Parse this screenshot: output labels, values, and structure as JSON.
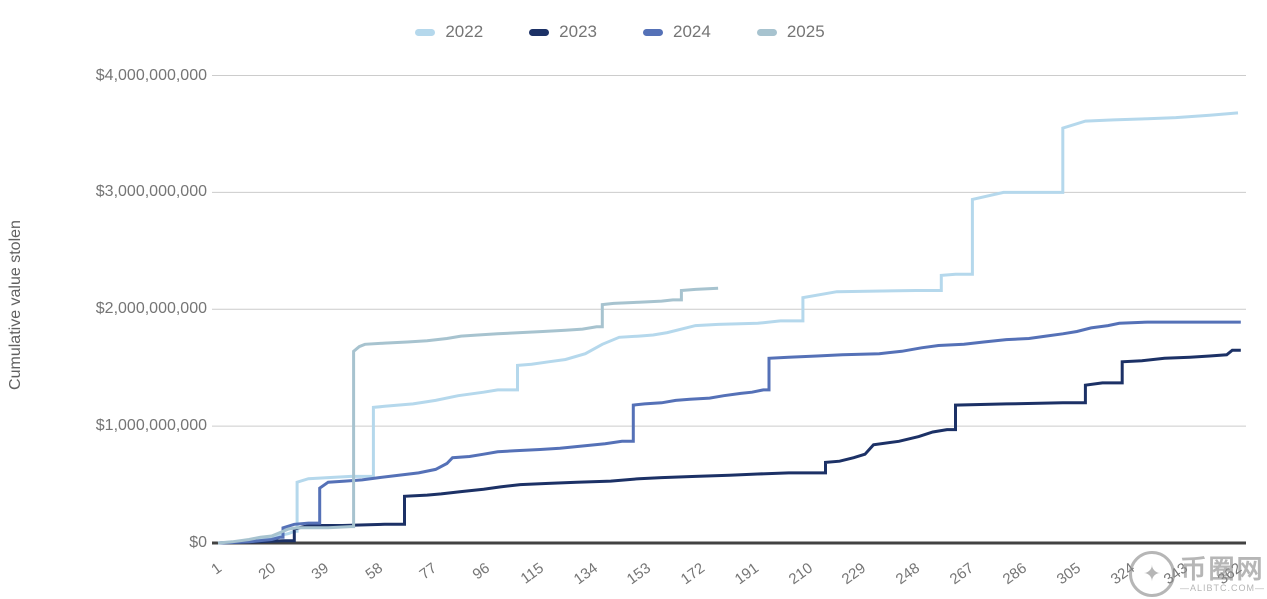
{
  "watermark": {
    "site_name": "币圈网",
    "domain": "—ALIBTC.COM—",
    "logo_icon": "panda-mascot-icon"
  },
  "chart_data": {
    "type": "line",
    "subtype": "cumulative-step",
    "title": "",
    "xlabel": "",
    "ylabel": "Cumulative value stolen",
    "values_unit": "USD billions",
    "ylim_billions": [
      0,
      4
    ],
    "xlim_days": [
      1,
      368
    ],
    "grid": "horizontal-only",
    "legend_position": "top-center",
    "axis_colors": {
      "gridline": "#cccccc",
      "baseline": "#424242",
      "tick_text": "#757575",
      "axis_title_text": "#616161"
    },
    "y_ticks": [
      {
        "value": 0,
        "label": "$0"
      },
      {
        "value": 1,
        "label": "$1,000,000,000"
      },
      {
        "value": 2,
        "label": "$2,000,000,000"
      },
      {
        "value": 3,
        "label": "$3,000,000,000"
      },
      {
        "value": 4,
        "label": "$4,000,000,000"
      }
    ],
    "x_ticks": [
      1,
      20,
      39,
      58,
      77,
      96,
      115,
      134,
      153,
      172,
      191,
      210,
      229,
      248,
      267,
      286,
      305,
      324,
      343,
      362
    ],
    "series": [
      {
        "name": "2022",
        "color": "#b5d8ec",
        "points_day_billions": [
          [
            1,
            0
          ],
          [
            8,
            0.01
          ],
          [
            15,
            0.03
          ],
          [
            20,
            0.05
          ],
          [
            26,
            0.08
          ],
          [
            28,
            0.1
          ],
          [
            29,
            0.52
          ],
          [
            33,
            0.55
          ],
          [
            40,
            0.56
          ],
          [
            48,
            0.57
          ],
          [
            56,
            1.16
          ],
          [
            60,
            1.17
          ],
          [
            70,
            1.19
          ],
          [
            78,
            1.22
          ],
          [
            86,
            1.26
          ],
          [
            95,
            1.29
          ],
          [
            100,
            1.31
          ],
          [
            107,
            1.52
          ],
          [
            112,
            1.53
          ],
          [
            118,
            1.55
          ],
          [
            124,
            1.57
          ],
          [
            131,
            1.62
          ],
          [
            137,
            1.7
          ],
          [
            143,
            1.76
          ],
          [
            150,
            1.77
          ],
          [
            155,
            1.78
          ],
          [
            160,
            1.8
          ],
          [
            170,
            1.86
          ],
          [
            178,
            1.87
          ],
          [
            192,
            1.88
          ],
          [
            200,
            1.9
          ],
          [
            208,
            2.1
          ],
          [
            220,
            2.15
          ],
          [
            248,
            2.16
          ],
          [
            257,
            2.29
          ],
          [
            262,
            2.3
          ],
          [
            268,
            2.94
          ],
          [
            279,
            3.0
          ],
          [
            299,
            3.0
          ],
          [
            300,
            3.55
          ],
          [
            308,
            3.61
          ],
          [
            318,
            3.62
          ],
          [
            330,
            3.63
          ],
          [
            340,
            3.64
          ],
          [
            352,
            3.66
          ],
          [
            362,
            3.68
          ]
        ]
      },
      {
        "name": "2023",
        "color": "#1c3166",
        "points_day_billions": [
          [
            1,
            0
          ],
          [
            15,
            0.01
          ],
          [
            24,
            0.02
          ],
          [
            28,
            0.12
          ],
          [
            33,
            0.15
          ],
          [
            45,
            0.15
          ],
          [
            60,
            0.16
          ],
          [
            66,
            0.16
          ],
          [
            67,
            0.4
          ],
          [
            75,
            0.41
          ],
          [
            80,
            0.42
          ],
          [
            87,
            0.44
          ],
          [
            95,
            0.46
          ],
          [
            101,
            0.48
          ],
          [
            108,
            0.5
          ],
          [
            118,
            0.51
          ],
          [
            128,
            0.52
          ],
          [
            140,
            0.53
          ],
          [
            150,
            0.55
          ],
          [
            158,
            0.56
          ],
          [
            170,
            0.57
          ],
          [
            182,
            0.58
          ],
          [
            192,
            0.59
          ],
          [
            203,
            0.6
          ],
          [
            216,
            0.69
          ],
          [
            221,
            0.7
          ],
          [
            226,
            0.73
          ],
          [
            230,
            0.76
          ],
          [
            233,
            0.84
          ],
          [
            242,
            0.87
          ],
          [
            249,
            0.91
          ],
          [
            254,
            0.95
          ],
          [
            259,
            0.97
          ],
          [
            262,
            1.18
          ],
          [
            280,
            1.19
          ],
          [
            300,
            1.2
          ],
          [
            308,
            1.35
          ],
          [
            314,
            1.37
          ],
          [
            321,
            1.55
          ],
          [
            328,
            1.56
          ],
          [
            336,
            1.58
          ],
          [
            345,
            1.59
          ],
          [
            352,
            1.6
          ],
          [
            358,
            1.61
          ],
          [
            360,
            1.65
          ],
          [
            363,
            1.65
          ]
        ]
      },
      {
        "name": "2024",
        "color": "#5571b7",
        "points_day_billions": [
          [
            1,
            0
          ],
          [
            12,
            0.01
          ],
          [
            20,
            0.03
          ],
          [
            23,
            0.05
          ],
          [
            24,
            0.13
          ],
          [
            28,
            0.16
          ],
          [
            33,
            0.17
          ],
          [
            37,
            0.47
          ],
          [
            40,
            0.52
          ],
          [
            46,
            0.53
          ],
          [
            52,
            0.54
          ],
          [
            58,
            0.56
          ],
          [
            65,
            0.58
          ],
          [
            72,
            0.6
          ],
          [
            78,
            0.63
          ],
          [
            82,
            0.68
          ],
          [
            84,
            0.73
          ],
          [
            90,
            0.74
          ],
          [
            95,
            0.76
          ],
          [
            100,
            0.78
          ],
          [
            106,
            0.79
          ],
          [
            115,
            0.8
          ],
          [
            122,
            0.81
          ],
          [
            130,
            0.83
          ],
          [
            138,
            0.85
          ],
          [
            144,
            0.87
          ],
          [
            148,
            1.18
          ],
          [
            152,
            1.19
          ],
          [
            158,
            1.2
          ],
          [
            163,
            1.22
          ],
          [
            168,
            1.23
          ],
          [
            175,
            1.24
          ],
          [
            180,
            1.26
          ],
          [
            186,
            1.28
          ],
          [
            190,
            1.29
          ],
          [
            194,
            1.31
          ],
          [
            196,
            1.58
          ],
          [
            203,
            1.59
          ],
          [
            213,
            1.6
          ],
          [
            222,
            1.61
          ],
          [
            235,
            1.62
          ],
          [
            243,
            1.64
          ],
          [
            250,
            1.67
          ],
          [
            256,
            1.69
          ],
          [
            265,
            1.7
          ],
          [
            272,
            1.72
          ],
          [
            280,
            1.74
          ],
          [
            288,
            1.75
          ],
          [
            294,
            1.77
          ],
          [
            300,
            1.79
          ],
          [
            305,
            1.81
          ],
          [
            310,
            1.84
          ],
          [
            316,
            1.86
          ],
          [
            320,
            1.88
          ],
          [
            330,
            1.89
          ],
          [
            363,
            1.89
          ]
        ]
      },
      {
        "name": "2025",
        "color": "#a7c3cf",
        "points_day_billions": [
          [
            1,
            0
          ],
          [
            6,
            0.01
          ],
          [
            12,
            0.03
          ],
          [
            16,
            0.05
          ],
          [
            20,
            0.06
          ],
          [
            23,
            0.09
          ],
          [
            26,
            0.12
          ],
          [
            29,
            0.13
          ],
          [
            40,
            0.13
          ],
          [
            48,
            0.14
          ],
          [
            49,
            1.64
          ],
          [
            51,
            1.68
          ],
          [
            53,
            1.7
          ],
          [
            60,
            1.71
          ],
          [
            68,
            1.72
          ],
          [
            75,
            1.73
          ],
          [
            82,
            1.75
          ],
          [
            87,
            1.77
          ],
          [
            93,
            1.78
          ],
          [
            100,
            1.79
          ],
          [
            108,
            1.8
          ],
          [
            116,
            1.81
          ],
          [
            124,
            1.82
          ],
          [
            130,
            1.83
          ],
          [
            135,
            1.85
          ],
          [
            137,
            2.04
          ],
          [
            141,
            2.05
          ],
          [
            150,
            2.06
          ],
          [
            158,
            2.07
          ],
          [
            162,
            2.08
          ],
          [
            165,
            2.16
          ],
          [
            170,
            2.17
          ],
          [
            178,
            2.18
          ]
        ]
      }
    ]
  }
}
